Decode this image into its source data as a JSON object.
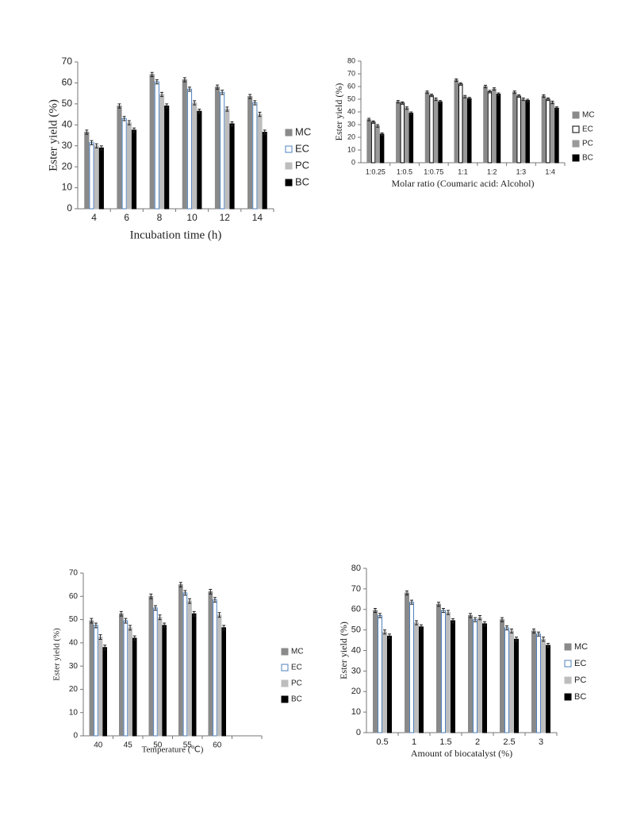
{
  "chart_data": [
    {
      "type": "bar",
      "x_label": "Incubation time (h)",
      "y_label": "Ester yield (%)",
      "categories": [
        "4",
        "6",
        "8",
        "10",
        "12",
        "14"
      ],
      "series": [
        {
          "name": "MC",
          "color": "#8a8a8a",
          "edgecolor": "#8a8a8a",
          "values": [
            36.5,
            49,
            64,
            61.5,
            58,
            53.5
          ]
        },
        {
          "name": "EC",
          "color": "#ffffff",
          "edgecolor": "#4f81bd",
          "values": [
            31.5,
            43,
            60.5,
            57,
            55.5,
            50.5
          ]
        },
        {
          "name": "PC",
          "color": "#bdbdbd",
          "edgecolor": "#bdbdbd",
          "values": [
            30,
            41,
            54.5,
            50.5,
            47.5,
            45
          ]
        },
        {
          "name": "BC",
          "color": "#000000",
          "edgecolor": "#000000",
          "values": [
            29,
            37.5,
            49,
            46.5,
            40.5,
            36.5
          ]
        }
      ],
      "error": 1,
      "ylim": [
        0,
        70
      ],
      "yticks": [
        0,
        10,
        20,
        30,
        40,
        50,
        60,
        70
      ]
    },
    {
      "type": "bar",
      "x_label": "Molar ratio (Coumaric acid: Alcohol)",
      "y_label": "Ester yield (%)",
      "categories": [
        "1:0.25",
        "1:0.5",
        "1:0.75",
        "1:1",
        "1:2",
        "1:3",
        "1:4"
      ],
      "series": [
        {
          "name": "MC",
          "color": "#8a8a8a",
          "edgecolor": "#8a8a8a",
          "values": [
            34,
            48,
            55.5,
            65,
            60,
            55.5,
            52.5
          ]
        },
        {
          "name": "EC",
          "color": "#ffffff",
          "edgecolor": "#000000",
          "values": [
            32,
            47,
            53,
            62,
            56,
            52.5,
            50
          ]
        },
        {
          "name": "PC",
          "color": "#9a9a9a",
          "edgecolor": "#9a9a9a",
          "values": [
            29,
            43,
            50,
            52,
            58,
            50,
            47.5
          ]
        },
        {
          "name": "BC",
          "color": "#000000",
          "edgecolor": "#000000",
          "values": [
            22.5,
            39,
            48,
            50.5,
            54,
            49,
            43
          ]
        }
      ],
      "error": 1,
      "ylim": [
        0,
        80
      ],
      "yticks": [
        0,
        10,
        20,
        30,
        40,
        50,
        60,
        70,
        80
      ]
    },
    {
      "type": "bar",
      "x_label": "Temperature (℃)",
      "y_label": "Ester yield (%)",
      "categories": [
        "40",
        "45",
        "50",
        "55",
        "60",
        null
      ],
      "series": [
        {
          "name": "MC",
          "color": "#8a8a8a",
          "edgecolor": "#8a8a8a",
          "values": [
            49.5,
            52.5,
            60,
            65,
            62,
            null
          ]
        },
        {
          "name": "EC",
          "color": "#ffffff",
          "edgecolor": "#4f81bd",
          "values": [
            47.5,
            49.5,
            55,
            61.5,
            58.5,
            null
          ]
        },
        {
          "name": "PC",
          "color": "#bdbdbd",
          "edgecolor": "#bdbdbd",
          "values": [
            42.5,
            46.5,
            51,
            58,
            52,
            null
          ]
        },
        {
          "name": "BC",
          "color": "#000000",
          "edgecolor": "#000000",
          "values": [
            38,
            42,
            47.5,
            52.5,
            46.5,
            null
          ]
        }
      ],
      "error": 1,
      "ylim": [
        0,
        70
      ],
      "yticks": [
        0,
        10,
        20,
        30,
        40,
        50,
        60,
        70
      ]
    },
    {
      "type": "bar",
      "x_label": "Amount of biocatalyst (%)",
      "y_label": "Ester yield (%)",
      "categories": [
        "0.5",
        "1",
        "1.5",
        "2",
        "2.5",
        "3"
      ],
      "series": [
        {
          "name": "MC",
          "color": "#8a8a8a",
          "edgecolor": "#8a8a8a",
          "values": [
            59.5,
            68,
            62.5,
            57,
            55,
            49.5
          ]
        },
        {
          "name": "EC",
          "color": "#ffffff",
          "edgecolor": "#4f81bd",
          "values": [
            57,
            63.5,
            59.5,
            55,
            51,
            48
          ]
        },
        {
          "name": "PC",
          "color": "#bdbdbd",
          "edgecolor": "#bdbdbd",
          "values": [
            49,
            53.5,
            58.5,
            56,
            49.5,
            45.5
          ]
        },
        {
          "name": "BC",
          "color": "#000000",
          "edgecolor": "#000000",
          "values": [
            47,
            51.5,
            54.5,
            53,
            45.5,
            42.5
          ]
        }
      ],
      "error": 1,
      "ylim": [
        0,
        80
      ],
      "yticks": [
        0,
        10,
        20,
        30,
        40,
        50,
        60,
        70,
        80
      ]
    }
  ]
}
